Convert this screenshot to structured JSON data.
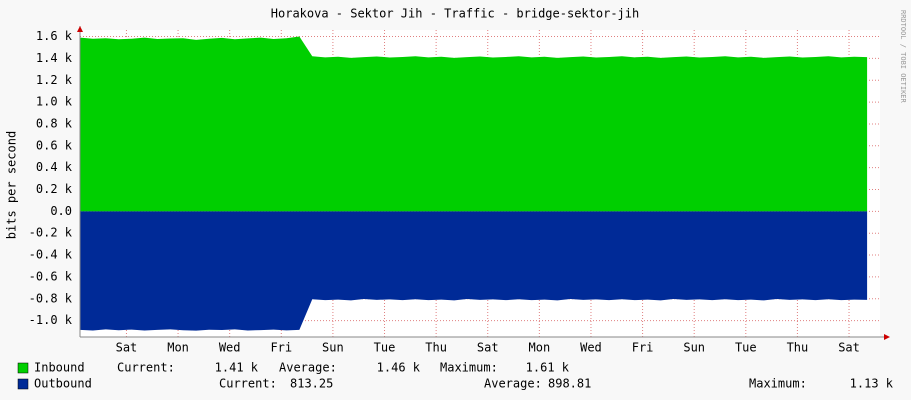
{
  "chart_data": {
    "type": "area",
    "title": "Horakova - Sektor Jih - Traffic - bridge-sektor-jih",
    "y_label": "bits per second",
    "watermark": "RRDTOOL / TOBI OETIKER",
    "grid": true,
    "xlim": [
      0,
      31
    ],
    "xticks": [
      {
        "value": 1.8,
        "label": "Sat"
      },
      {
        "value": 3.8,
        "label": "Mon"
      },
      {
        "value": 5.8,
        "label": "Wed"
      },
      {
        "value": 7.8,
        "label": "Fri"
      },
      {
        "value": 9.8,
        "label": "Sun"
      },
      {
        "value": 11.8,
        "label": "Tue"
      },
      {
        "value": 13.8,
        "label": "Thu"
      },
      {
        "value": 15.8,
        "label": "Sat"
      },
      {
        "value": 17.8,
        "label": "Mon"
      },
      {
        "value": 19.8,
        "label": "Wed"
      },
      {
        "value": 21.8,
        "label": "Fri"
      },
      {
        "value": 23.8,
        "label": "Sun"
      },
      {
        "value": 25.8,
        "label": "Tue"
      },
      {
        "value": 27.8,
        "label": "Thu"
      },
      {
        "value": 29.8,
        "label": "Sat"
      }
    ],
    "ylim": [
      -1150,
      1660
    ],
    "yticks": [
      {
        "value": 1600,
        "label": "1.6 k"
      },
      {
        "value": 1400,
        "label": "1.4 k"
      },
      {
        "value": 1200,
        "label": "1.2 k"
      },
      {
        "value": 1000,
        "label": "1.0 k"
      },
      {
        "value": 800,
        "label": "0.8 k"
      },
      {
        "value": 600,
        "label": "0.6 k"
      },
      {
        "value": 400,
        "label": "0.4 k"
      },
      {
        "value": 200,
        "label": "0.2 k"
      },
      {
        "value": 0,
        "label": "0.0"
      },
      {
        "value": -200,
        "label": "-0.2 k"
      },
      {
        "value": -400,
        "label": "-0.4 k"
      },
      {
        "value": -600,
        "label": "-0.6 k"
      },
      {
        "value": -800,
        "label": "-0.8 k"
      },
      {
        "value": -1000,
        "label": "-1.0 k"
      }
    ],
    "x": [
      0,
      0.5,
      1,
      1.5,
      2,
      2.5,
      3,
      3.5,
      4,
      4.5,
      5,
      5.5,
      6,
      6.5,
      7,
      7.5,
      8,
      8.5,
      9,
      9.5,
      10,
      10.5,
      11,
      11.5,
      12,
      12.5,
      13,
      13.5,
      14,
      14.5,
      15,
      15.5,
      16,
      16.5,
      17,
      17.5,
      18,
      18.5,
      19,
      19.5,
      20,
      20.5,
      21,
      21.5,
      22,
      22.5,
      23,
      23.5,
      24,
      24.5,
      25,
      25.5,
      26,
      26.5,
      27,
      27.5,
      28,
      28.5,
      29,
      29.5,
      30,
      30.5
    ],
    "series": [
      {
        "name": "Inbound",
        "color": "#00CF00",
        "values": [
          1590,
          1580,
          1585,
          1575,
          1580,
          1590,
          1578,
          1582,
          1585,
          1570,
          1580,
          1588,
          1575,
          1583,
          1590,
          1578,
          1584,
          1600,
          1420,
          1410,
          1415,
          1405,
          1412,
          1418,
          1408,
          1413,
          1420,
          1410,
          1415,
          1405,
          1412,
          1418,
          1408,
          1413,
          1420,
          1410,
          1415,
          1405,
          1412,
          1418,
          1408,
          1413,
          1420,
          1410,
          1415,
          1405,
          1412,
          1418,
          1408,
          1413,
          1420,
          1410,
          1415,
          1405,
          1412,
          1418,
          1408,
          1413,
          1420,
          1410,
          1415,
          1412
        ],
        "stats": [
          {
            "label": "Current:",
            "value": "1.41 k"
          },
          {
            "label": "Average:",
            "value": "1.46 k"
          },
          {
            "label": "Maximum:",
            "value": "1.61 k"
          }
        ]
      },
      {
        "name": "Outbound",
        "color": "#002A97",
        "values": [
          -1085,
          -1090,
          -1080,
          -1088,
          -1082,
          -1090,
          -1085,
          -1080,
          -1088,
          -1092,
          -1084,
          -1086,
          -1080,
          -1090,
          -1087,
          -1083,
          -1089,
          -1085,
          -805,
          -812,
          -808,
          -815,
          -802,
          -810,
          -806,
          -813,
          -805,
          -812,
          -808,
          -815,
          -802,
          -810,
          -806,
          -813,
          -805,
          -812,
          -808,
          -815,
          -802,
          -810,
          -806,
          -813,
          -805,
          -812,
          -808,
          -815,
          -802,
          -810,
          -806,
          -813,
          -805,
          -812,
          -808,
          -815,
          -802,
          -810,
          -806,
          -813,
          -805,
          -812,
          -808,
          -810
        ],
        "stats": [
          {
            "label": "Current:",
            "value": "813.25"
          },
          {
            "label": "Average:",
            "value": "898.81"
          },
          {
            "label": "Maximum:",
            "value": "1.13 k"
          }
        ]
      }
    ]
  }
}
